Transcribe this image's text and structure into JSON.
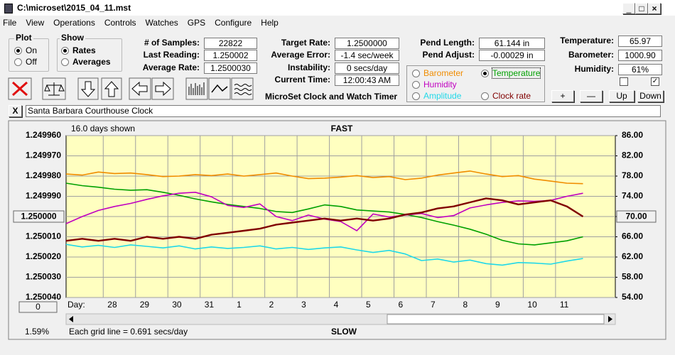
{
  "window": {
    "title": "C:\\microset\\2015_04_11.mst"
  },
  "menu": [
    "File",
    "View",
    "Operations",
    "Controls",
    "Watches",
    "GPS",
    "Configure",
    "Help"
  ],
  "plot": {
    "title": "Plot",
    "options": [
      "On",
      "Off"
    ],
    "selected": 0
  },
  "show": {
    "title": "Show",
    "options": [
      "Rates",
      "Averages"
    ],
    "selected": 0
  },
  "readouts": [
    {
      "label": "# of Samples:",
      "value": "22822"
    },
    {
      "label": "Last Reading:",
      "value": "1.250002"
    },
    {
      "label": "Average Rate:",
      "value": "1.2500030"
    },
    {
      "label": "Target Rate:",
      "value": "1.2500000"
    },
    {
      "label": "Average Error:",
      "value": "-1.4 sec/week"
    },
    {
      "label": "Instability:",
      "value": "0 secs/day"
    },
    {
      "label": "Current Time:",
      "value": "12:00:43 AM"
    },
    {
      "label": "Pend Length:",
      "value": "61.144 in"
    },
    {
      "label": "Pend Adjust:",
      "value": "-0.00029 in"
    },
    {
      "label": "Temperature:",
      "value": "65.97"
    },
    {
      "label": "Barometer:",
      "value": "1000.90"
    },
    {
      "label": "Humidity:",
      "value": "61%"
    }
  ],
  "app_label": "MicroSet Clock and Watch Timer",
  "buttons": [
    "+",
    "—",
    "Up",
    "Down"
  ],
  "note": {
    "close": "X",
    "text": "Santa Barbara Courthouse Clock"
  },
  "chart_data": {
    "type": "line",
    "days_shown": "16.0 days shown",
    "top_label": "FAST",
    "bottom_label": "SLOW",
    "x_label": "Day:",
    "percent": "1.59%",
    "grid_note": "Each grid line = 0.691 secs/day",
    "left_button": "1.250000",
    "right_button": "70.00",
    "bottom_button": "0",
    "selected_series": 1,
    "grid": true,
    "xlim": [
      0,
      17
    ],
    "xticks": [
      {
        "value": 1.15,
        "label": "28"
      },
      {
        "value": 2.15,
        "label": "29"
      },
      {
        "value": 3.15,
        "label": "30"
      },
      {
        "value": 4.15,
        "label": "31"
      },
      {
        "value": 5.15,
        "label": "1"
      },
      {
        "value": 6.15,
        "label": "2"
      },
      {
        "value": 7.15,
        "label": "3"
      },
      {
        "value": 8.15,
        "label": "4"
      },
      {
        "value": 9.15,
        "label": "5"
      },
      {
        "value": 10.15,
        "label": "6"
      },
      {
        "value": 11.15,
        "label": "7"
      },
      {
        "value": 12.15,
        "label": "8"
      },
      {
        "value": 13.15,
        "label": "9"
      },
      {
        "value": 14.15,
        "label": "10"
      },
      {
        "value": 15.15,
        "label": "11"
      }
    ],
    "ylim": [
      1.25004,
      1.24996
    ],
    "yticks": [
      {
        "value": 1.24996,
        "label": "1.249960"
      },
      {
        "value": 1.24997,
        "label": "1.249970"
      },
      {
        "value": 1.24998,
        "label": "1.249980"
      },
      {
        "value": 1.24999,
        "label": "1.249990"
      },
      {
        "value": 1.25,
        "label": "1.250000"
      },
      {
        "value": 1.25001,
        "label": "1.250010"
      },
      {
        "value": 1.25002,
        "label": "1.250020"
      },
      {
        "value": 1.25003,
        "label": "1.250030"
      },
      {
        "value": 1.25004,
        "label": "1.250040"
      }
    ],
    "y2lim": [
      54,
      86
    ],
    "y2ticks": [
      {
        "value": 86,
        "label": "86.00"
      },
      {
        "value": 82,
        "label": "82.00"
      },
      {
        "value": 78,
        "label": "78.00"
      },
      {
        "value": 74,
        "label": "74.00"
      },
      {
        "value": 70,
        "label": "70.00"
      },
      {
        "value": 66,
        "label": "66.00"
      },
      {
        "value": 62,
        "label": "62.00"
      },
      {
        "value": 58,
        "label": "58.00"
      },
      {
        "value": 54,
        "label": "54.00"
      }
    ],
    "x": [
      0,
      0.5,
      1,
      1.5,
      2,
      2.5,
      3,
      3.5,
      4,
      4.5,
      5,
      5.5,
      6,
      6.5,
      7,
      7.5,
      8,
      8.5,
      9,
      9.5,
      10,
      10.5,
      11,
      11.5,
      12,
      12.5,
      13,
      13.5,
      14,
      14.5,
      15,
      15.5,
      16
    ],
    "series": [
      {
        "name": "Barometer",
        "color": "#f08c00",
        "axis": "y2",
        "values": [
          78.4,
          78.2,
          78.8,
          78.5,
          78.6,
          78.3,
          77.9,
          78.0,
          78.3,
          78.1,
          78.4,
          78.0,
          78.3,
          78.6,
          78.0,
          77.5,
          77.6,
          77.8,
          78.1,
          77.7,
          77.9,
          77.3,
          77.6,
          78.2,
          78.6,
          79.0,
          78.4,
          77.9,
          78.1,
          77.4,
          77.0,
          76.6,
          76.5
        ]
      },
      {
        "name": "Temperature",
        "color": "#00a000",
        "axis": "y2",
        "values": [
          76.6,
          76.1,
          75.8,
          75.4,
          75.2,
          75.3,
          74.8,
          74.2,
          73.5,
          72.9,
          72.4,
          72.0,
          71.6,
          71.0,
          70.8,
          71.5,
          72.3,
          72.0,
          71.3,
          71.1,
          70.9,
          70.4,
          69.8,
          69.0,
          68.3,
          67.5,
          66.5,
          65.3,
          64.6,
          64.4,
          64.8,
          65.2,
          66.0
        ]
      },
      {
        "name": "Humidity",
        "color": "#c000c0",
        "axis": "y2",
        "values": [
          68.6,
          70.0,
          71.2,
          72.0,
          72.6,
          73.4,
          74.1,
          74.6,
          74.8,
          73.9,
          72.2,
          71.8,
          72.5,
          70.0,
          69.2,
          70.3,
          69.5,
          69.0,
          67.2,
          70.5,
          69.9,
          70.3,
          70.6,
          69.8,
          70.2,
          71.7,
          72.3,
          72.8,
          73.1,
          73.0,
          73.2,
          74.0,
          74.6
        ]
      },
      {
        "name": "Amplitude",
        "color": "#20d8e8",
        "axis": "y2",
        "values": [
          64.5,
          64.0,
          64.3,
          63.9,
          64.4,
          64.1,
          63.8,
          64.2,
          63.6,
          64.0,
          63.7,
          63.9,
          64.2,
          63.6,
          63.9,
          63.5,
          63.8,
          64.0,
          63.4,
          62.9,
          63.3,
          62.6,
          61.3,
          61.6,
          61.0,
          61.4,
          60.7,
          60.4,
          60.9,
          60.8,
          60.6,
          61.2,
          61.7
        ]
      },
      {
        "name": "Clock rate",
        "color": "#800000",
        "axis": "y",
        "values": [
          1.250012,
          1.250011,
          1.250012,
          1.250011,
          1.250012,
          1.25001,
          1.250011,
          1.25001,
          1.250011,
          1.250009,
          1.250008,
          1.250007,
          1.250006,
          1.250004,
          1.250003,
          1.250002,
          1.250001,
          1.250002,
          1.250001,
          1.250002,
          1.250001,
          1.249999,
          1.249998,
          1.249996,
          1.249995,
          1.249993,
          1.249991,
          1.249992,
          1.249994,
          1.249993,
          1.249992,
          1.249995,
          1.25
        ]
      }
    ]
  }
}
